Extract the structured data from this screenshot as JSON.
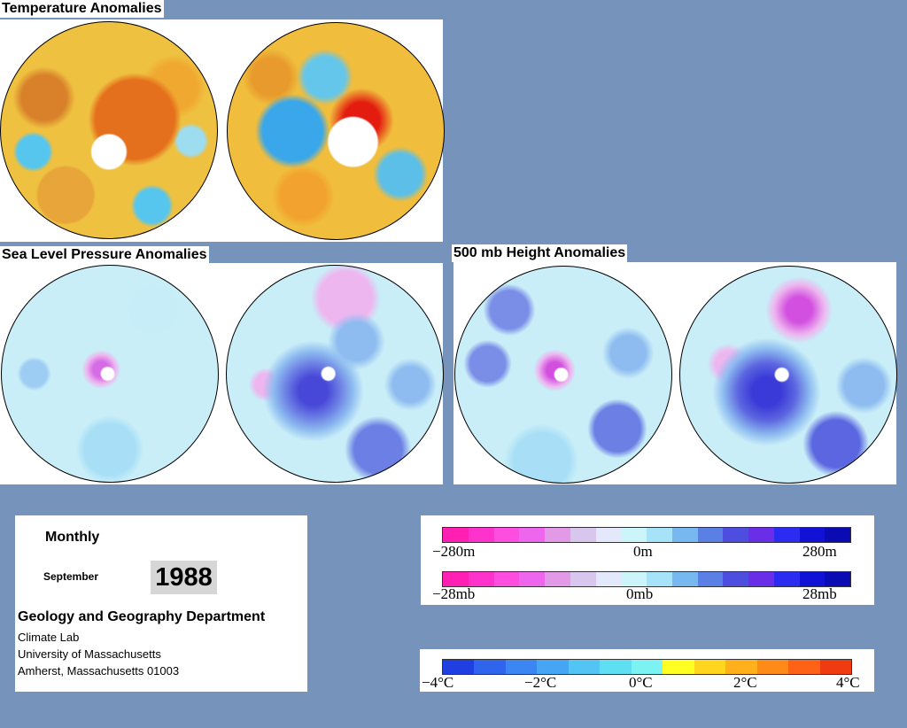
{
  "titles": {
    "temperature": "Temperature Anomalies",
    "slp": "Sea Level Pressure Anomalies",
    "height500": "500 mb Height Anomalies"
  },
  "colors": {
    "background": "#7593bb",
    "warm_anomaly": "#e8861a",
    "cold_anomaly": "#4fb4e8",
    "positive_pressure": "#f0b3f0",
    "negative_pressure": "#5d5de0",
    "neutral": "#cdf3f8"
  },
  "info": {
    "period_label": "Monthly",
    "month": "September",
    "year": "1988",
    "department": "Geology and Geography Department",
    "lab": "Climate Lab",
    "university": "University of Massachusetts",
    "address": "Amherst, Massachusetts 01003"
  },
  "pressure_scale": {
    "colors": [
      "#ff1fb3",
      "#ff33cc",
      "#ff4de0",
      "#ee66ee",
      "#e39ae6",
      "#d8c6ef",
      "#e3e9fb",
      "#ccf5f9",
      "#a7e3f8",
      "#78b8f0",
      "#5a80e6",
      "#4d4ddf",
      "#6a2ee8",
      "#2b2bf2",
      "#1212d6",
      "#0b0bb3"
    ],
    "height_labels": [
      "−280m",
      "0m",
      "280m"
    ],
    "slp_labels": [
      "−28mb",
      "0mb",
      "28mb"
    ]
  },
  "temperature_scale": {
    "colors": [
      "#1f3fe0",
      "#2f64ec",
      "#3b86f2",
      "#47a5f5",
      "#52c5f5",
      "#5fdff2",
      "#7cf2f2",
      "#ffff22",
      "#ffd61e",
      "#ffb01a",
      "#ff8a17",
      "#ff6214",
      "#f03a10"
    ],
    "labels": [
      "−4°C",
      "−2°C",
      "0°C",
      "2°C",
      "4°C"
    ]
  }
}
